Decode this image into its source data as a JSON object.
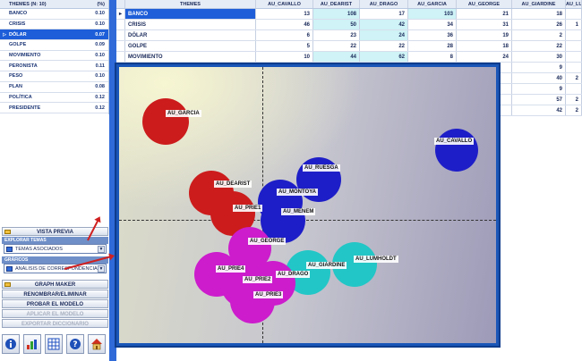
{
  "themes_table": {
    "col_name": "THEMES (N: 10)",
    "col_pct": "(%)",
    "rows": [
      {
        "name": "BANCO",
        "pct": "0.10"
      },
      {
        "name": "CRISIS",
        "pct": "0.10"
      },
      {
        "name": "DÓLAR",
        "pct": "0.07",
        "selected": true
      },
      {
        "name": "GOLPE",
        "pct": "0.09"
      },
      {
        "name": "MOVIMIENTO",
        "pct": "0.10"
      },
      {
        "name": "PERONISTA",
        "pct": "0.11"
      },
      {
        "name": "PESO",
        "pct": "0.10"
      },
      {
        "name": "PLAN",
        "pct": "0.08"
      },
      {
        "name": "POLÍTICA",
        "pct": "0.12"
      },
      {
        "name": "PRESIDENTE",
        "pct": "0.12"
      }
    ]
  },
  "left_panel": {
    "vista_previa": "VISTA PREVIA",
    "explorar_temas_label": "EXPLORAR TEMAS",
    "explorar_combo_value": "TEMAS ASOCIADOS",
    "graficos_label": "GRÁFICOS",
    "graficos_combo_value": "ANÁLISIS DE CORRESPONDENCIAS",
    "graph_maker": "GRAPH MAKER",
    "renombrar": "RENOMBRAR/ELIMINAR",
    "probar": "PROBAR EL MODELO",
    "aplicar": "APLICAR EL MODELO",
    "exportar": "EXPORTAR DICCIONARIO",
    "icons": [
      "info-icon",
      "chart-icon",
      "grid-icon",
      "help-icon",
      "home-icon"
    ]
  },
  "data_table": {
    "columns": [
      "THEMES",
      "AU_CAVALLO",
      "AU_DEARIST",
      "AU_DRAGO",
      "AU_GARCIA",
      "AU_GEORGE",
      "AU_GIARDINE",
      "AU_LUMHOLDT"
    ],
    "rows": [
      {
        "name": "BANCO",
        "vals": [
          "13",
          "108",
          "17",
          "103",
          "21",
          "18",
          ""
        ],
        "selected": true
      },
      {
        "name": "CRISIS",
        "vals": [
          "46",
          "50",
          "42",
          "34",
          "31",
          "26",
          "1"
        ]
      },
      {
        "name": "DÓLAR",
        "vals": [
          "6",
          "23",
          "24",
          "36",
          "19",
          "2",
          ""
        ]
      },
      {
        "name": "GOLPE",
        "vals": [
          "5",
          "22",
          "22",
          "28",
          "18",
          "22",
          ""
        ]
      },
      {
        "name": "MOVIMIENTO",
        "vals": [
          "10",
          "44",
          "62",
          "8",
          "24",
          "30",
          ""
        ]
      },
      {
        "name": "",
        "vals": [
          "",
          "",
          "",
          "",
          "",
          "9",
          ""
        ]
      },
      {
        "name": "",
        "vals": [
          "",
          "",
          "",
          "",
          "",
          "40",
          "2"
        ]
      },
      {
        "name": "",
        "vals": [
          "",
          "",
          "",
          "",
          "",
          "9",
          ""
        ]
      },
      {
        "name": "",
        "vals": [
          "",
          "",
          "",
          "",
          "",
          "57",
          "2"
        ]
      },
      {
        "name": "",
        "vals": [
          "",
          "",
          "",
          "",
          "",
          "42",
          "2"
        ]
      }
    ]
  },
  "correspondence_map": {
    "colors": {
      "red": "#cc1c1c",
      "blue": "#1e1ec8",
      "magenta": "#cc1ccc",
      "teal": "#22c6c6"
    },
    "points": [
      {
        "label": "AU_GARCIA",
        "color": "red"
      },
      {
        "label": "AU_CAVALLO",
        "color": "blue"
      },
      {
        "label": "AU_RUESGA",
        "color": "blue"
      },
      {
        "label": "AU_DEARIST",
        "color": "red"
      },
      {
        "label": "AU_MONTOYA",
        "color": "blue"
      },
      {
        "label": "AU_PRIE1",
        "color": "red"
      },
      {
        "label": "AU_MENEM",
        "color": "blue"
      },
      {
        "label": "AU_GEORGE",
        "color": "magenta"
      },
      {
        "label": "AU_LUMHOLDT",
        "color": "teal"
      },
      {
        "label": "AU_GIARDINE",
        "color": "teal"
      },
      {
        "label": "AU_PRIE4",
        "color": "magenta"
      },
      {
        "label": "AU_DRAGO",
        "color": "magenta"
      },
      {
        "label": "AU_PRIE2",
        "color": "magenta"
      },
      {
        "label": "AU_PRIE3",
        "color": "magenta"
      }
    ]
  }
}
